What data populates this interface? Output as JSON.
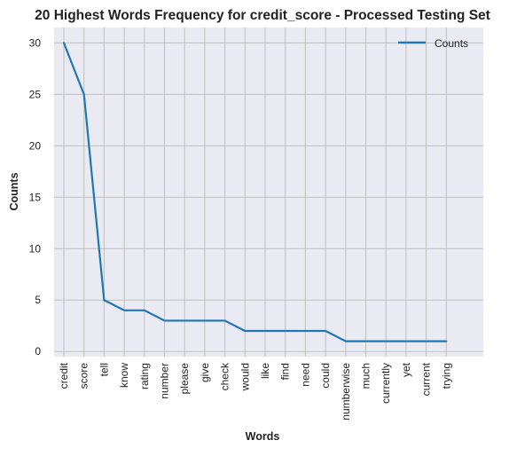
{
  "chart_data": {
    "type": "line",
    "title": "20 Highest Words Frequency for credit_score - Processed Testing Set",
    "xlabel": "Words",
    "ylabel": "Counts",
    "categories": [
      "credit",
      "score",
      "tell",
      "know",
      "rating",
      "number",
      "please",
      "give",
      "check",
      "would",
      "like",
      "find",
      "need",
      "could",
      "numberwise",
      "much",
      "currently",
      "yet",
      "current",
      "trying"
    ],
    "series": [
      {
        "name": "Counts",
        "values": [
          30,
          25,
          5,
          4,
          4,
          3,
          3,
          3,
          3,
          2,
          2,
          2,
          2,
          2,
          1,
          1,
          1,
          1,
          1,
          1
        ]
      }
    ],
    "ylim": [
      -0.5,
      31.5
    ],
    "yticks": [
      0,
      5,
      10,
      15,
      20,
      25,
      30
    ],
    "grid": true,
    "legend_position": "top-right",
    "colors": {
      "line": "#1f77b4",
      "background": "#eaeaf2",
      "grid": "#bfbfbf"
    }
  }
}
